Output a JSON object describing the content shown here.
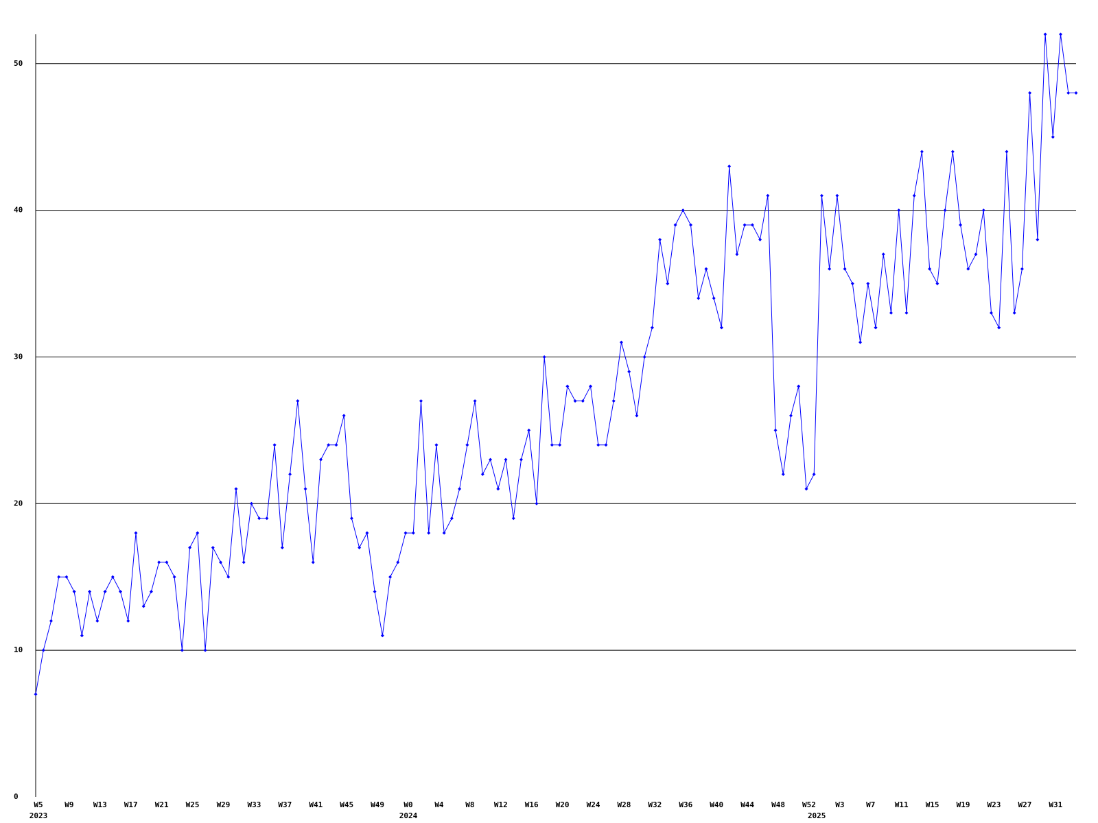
{
  "chart_data": {
    "type": "line",
    "categories": [
      "W5",
      null,
      null,
      null,
      "W9",
      null,
      null,
      null,
      "W13",
      null,
      null,
      null,
      "W17",
      null,
      null,
      null,
      "W21",
      null,
      null,
      null,
      "W25",
      null,
      null,
      null,
      "W29",
      null,
      null,
      null,
      "W33",
      null,
      null,
      null,
      "W37",
      null,
      null,
      null,
      "W41",
      null,
      null,
      null,
      "W45",
      null,
      null,
      null,
      "W49",
      null,
      null,
      null,
      "W0",
      null,
      null,
      null,
      "W4",
      null,
      null,
      null,
      "W8",
      null,
      null,
      null,
      "W12",
      null,
      null,
      null,
      "W16",
      null,
      null,
      null,
      "W20",
      null,
      null,
      null,
      "W24",
      null,
      null,
      null,
      "W28",
      null,
      null,
      null,
      "W32",
      null,
      null,
      null,
      "W36",
      null,
      null,
      null,
      "W40",
      null,
      null,
      null,
      "W44",
      null,
      null,
      null,
      "W48",
      null,
      null,
      null,
      "W52",
      null,
      null,
      null,
      "W3",
      null,
      null,
      null,
      "W7",
      null,
      null,
      null,
      "W11",
      null,
      null,
      null,
      "W15",
      null,
      null,
      null,
      "W19",
      null,
      null,
      null,
      "W23",
      null,
      null,
      null,
      "W27",
      null,
      null,
      null,
      "W31",
      null,
      null,
      null
    ],
    "category_years": [
      "2023",
      null,
      null,
      null,
      null,
      null,
      null,
      null,
      null,
      null,
      null,
      null,
      null,
      null,
      null,
      null,
      null,
      null,
      null,
      null,
      null,
      null,
      null,
      null,
      null,
      null,
      null,
      null,
      null,
      null,
      null,
      null,
      null,
      null,
      null,
      null,
      null,
      null,
      null,
      null,
      null,
      null,
      null,
      null,
      null,
      null,
      null,
      null,
      "2024",
      null,
      null,
      null,
      null,
      null,
      null,
      null,
      null,
      null,
      null,
      null,
      null,
      null,
      null,
      null,
      null,
      null,
      null,
      null,
      null,
      null,
      null,
      null,
      null,
      null,
      null,
      null,
      null,
      null,
      null,
      null,
      null,
      null,
      null,
      null,
      null,
      null,
      null,
      null,
      null,
      null,
      null,
      null,
      null,
      null,
      null,
      null,
      null,
      null,
      null,
      null,
      null,
      "2025",
      null,
      null,
      null,
      null,
      null,
      null,
      null,
      null,
      null,
      null,
      null,
      null,
      null,
      null,
      null,
      null,
      null,
      null,
      null,
      null,
      null,
      null,
      null,
      null,
      null,
      null,
      null,
      null,
      null,
      null,
      null,
      null,
      null,
      null
    ],
    "series": [
      {
        "color": "#0000ff",
        "values": [
          7,
          10,
          12,
          15,
          15,
          14,
          11,
          14,
          12,
          14,
          15,
          14,
          12,
          18,
          13,
          14,
          16,
          16,
          15,
          10,
          17,
          18,
          10,
          17,
          16,
          15,
          21,
          16,
          20,
          19,
          19,
          24,
          17,
          22,
          27,
          21,
          16,
          23,
          24,
          24,
          26,
          19,
          17,
          18,
          14,
          11,
          15,
          16,
          18,
          18,
          27,
          18,
          24,
          18,
          19,
          21,
          24,
          27,
          22,
          23,
          21,
          23,
          19,
          23,
          25,
          20,
          30,
          24,
          24,
          28,
          27,
          27,
          28,
          24,
          24,
          27,
          31,
          29,
          26,
          30,
          32,
          38,
          35,
          39,
          40,
          39,
          34,
          36,
          34,
          32,
          43,
          37,
          39,
          39,
          38,
          41,
          25,
          22,
          26,
          28,
          21,
          22,
          41,
          36,
          41,
          36,
          35,
          31,
          35,
          32,
          37,
          33,
          40,
          33,
          41,
          44,
          36,
          35,
          40,
          44,
          39,
          36,
          37,
          40,
          33,
          32,
          44,
          33,
          36,
          48,
          38,
          52,
          45,
          52,
          48,
          48
        ]
      }
    ],
    "ylim": [
      0,
      52
    ],
    "yticks": [
      0,
      10,
      20,
      30,
      40,
      50
    ],
    "grid": true
  }
}
